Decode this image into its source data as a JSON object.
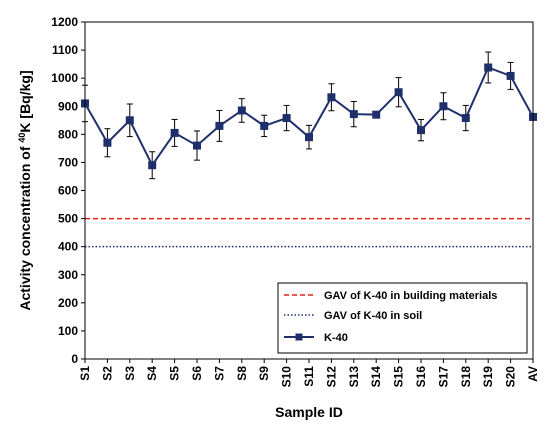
{
  "chart_data": {
    "type": "line",
    "title": "",
    "xlabel": "Sample ID",
    "ylabel_prefix": "Activity concentration of ",
    "ylabel_sup": "40",
    "ylabel_suffix": "K [Bq/kg]",
    "ylim": [
      0,
      1200
    ],
    "ystep": 100,
    "grid": false,
    "legend_position": "bottom-right",
    "categories": [
      "S1",
      "S2",
      "S3",
      "S4",
      "S5",
      "S6",
      "S7",
      "S8",
      "S9",
      "S10",
      "S11",
      "S12",
      "S13",
      "S14",
      "S15",
      "S16",
      "S17",
      "S18",
      "S19",
      "S20",
      "AV"
    ],
    "series": [
      {
        "name": "K-40",
        "color": "#1f2f6b",
        "values": [
          910,
          770,
          850,
          690,
          805,
          760,
          830,
          885,
          830,
          858,
          790,
          932,
          872,
          870,
          950,
          815,
          900,
          858,
          1038,
          1008,
          862
        ],
        "errors": [
          65,
          50,
          58,
          48,
          48,
          52,
          55,
          42,
          38,
          45,
          42,
          48,
          45,
          0,
          52,
          38,
          48,
          45,
          55,
          48,
          0
        ]
      }
    ],
    "reference_lines": [
      {
        "name": "GAV of K-40 in building materials",
        "value": 500,
        "color": "#e02020",
        "style": "dashed"
      },
      {
        "name": "GAV of K-40 in soil",
        "value": 400,
        "color": "#1f2f6b",
        "style": "dotted"
      }
    ]
  }
}
